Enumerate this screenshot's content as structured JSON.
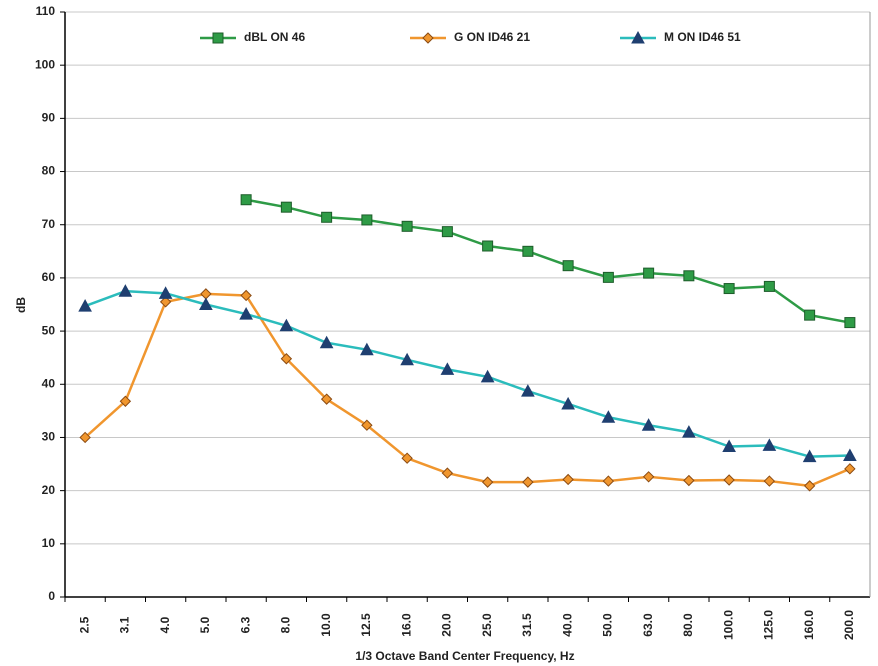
{
  "chart_data": {
    "type": "line",
    "y_label": "dB",
    "x_label": "1/3 Octave Band Center Frequency, Hz",
    "categories": [
      "2.5",
      "3.1",
      "4.0",
      "5.0",
      "6.3",
      "8.0",
      "10.0",
      "12.5",
      "16.0",
      "20.0",
      "25.0",
      "31.5",
      "40.0",
      "50.0",
      "63.0",
      "80.0",
      "100.0",
      "125.0",
      "160.0",
      "200.0"
    ],
    "series": [
      {
        "name": "dBL ON 46",
        "color": "#2e9b46",
        "marker": "square",
        "values": [
          null,
          null,
          null,
          null,
          74.7,
          73.3,
          71.4,
          70.9,
          69.7,
          68.7,
          66.0,
          65.0,
          62.3,
          60.1,
          60.9,
          60.4,
          58.0,
          58.4,
          53.0,
          51.6
        ]
      },
      {
        "name": "G ON ID46 21",
        "color": "#f0962e",
        "marker": "diamond",
        "values": [
          30.0,
          36.8,
          55.5,
          57.0,
          56.7,
          44.8,
          37.2,
          32.3,
          26.1,
          23.3,
          21.6,
          21.6,
          22.1,
          21.8,
          22.6,
          21.9,
          22.0,
          21.8,
          20.9,
          24.1
        ]
      },
      {
        "name": "M ON ID46 51",
        "color": "#2bbcbc",
        "marker": "triangle",
        "values": [
          54.7,
          57.5,
          57.1,
          55.0,
          53.2,
          51.0,
          47.8,
          46.5,
          44.6,
          42.8,
          41.4,
          38.7,
          36.3,
          33.8,
          32.3,
          31.0,
          28.3,
          28.5,
          26.4,
          26.6
        ]
      }
    ],
    "ylim": [
      0,
      110
    ],
    "yticks": [
      0,
      10,
      20,
      30,
      40,
      50,
      60,
      70,
      80,
      90,
      100,
      110
    ],
    "grid": true,
    "legend": "top"
  }
}
